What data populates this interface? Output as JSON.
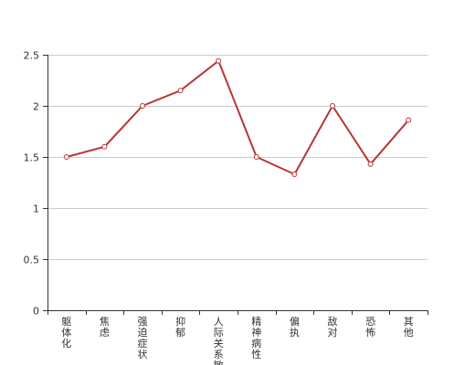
{
  "chart_data": {
    "type": "line",
    "categories": [
      "躯体化",
      "焦虑",
      "强迫症状",
      "抑郁",
      "人际关系敏感",
      "精神病性",
      "偏执",
      "敌对",
      "恐怖",
      "其他"
    ],
    "series": [
      {
        "values": [
          1.5,
          1.6,
          2.0,
          2.15,
          2.44,
          1.5,
          1.33,
          2.0,
          1.43,
          1.86
        ]
      }
    ],
    "ylim": [
      0,
      2.5
    ],
    "yticks": [
      0,
      0.5,
      1,
      1.5,
      2,
      2.5
    ],
    "ytick_labels": [
      "0",
      "0.5",
      "1",
      "1.5",
      "2",
      "2.5"
    ],
    "grid": true,
    "colors": {
      "line": "#b83535",
      "grid": "#cccccc",
      "axis": "#333333",
      "marker_fill": "#ffffff"
    }
  }
}
